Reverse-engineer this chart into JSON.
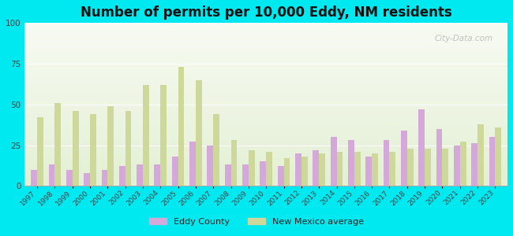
{
  "title": "Number of permits per 10,000 Eddy, NM residents",
  "years": [
    1997,
    1998,
    1999,
    2000,
    2001,
    2002,
    2003,
    2004,
    2005,
    2006,
    2007,
    2008,
    2009,
    2010,
    2011,
    2012,
    2013,
    2014,
    2015,
    2016,
    2017,
    2018,
    2019,
    2020,
    2021,
    2022,
    2023
  ],
  "eddy_county": [
    10,
    13,
    10,
    8,
    10,
    12,
    13,
    13,
    18,
    27,
    25,
    13,
    13,
    15,
    12,
    20,
    22,
    30,
    28,
    18,
    28,
    34,
    47,
    35,
    25,
    26,
    30
  ],
  "nm_average": [
    42,
    51,
    46,
    44,
    49,
    46,
    62,
    62,
    73,
    65,
    44,
    28,
    22,
    21,
    17,
    18,
    20,
    21,
    21,
    20,
    21,
    23,
    23,
    23,
    27,
    38,
    36
  ],
  "eddy_color": "#d4a8d8",
  "nm_color": "#cdd89a",
  "outer_bg": "#00e8f0",
  "ylim": [
    0,
    100
  ],
  "yticks": [
    0,
    25,
    50,
    75,
    100
  ],
  "bar_width": 0.35,
  "title_fontsize": 12,
  "watermark": "City-Data.com"
}
